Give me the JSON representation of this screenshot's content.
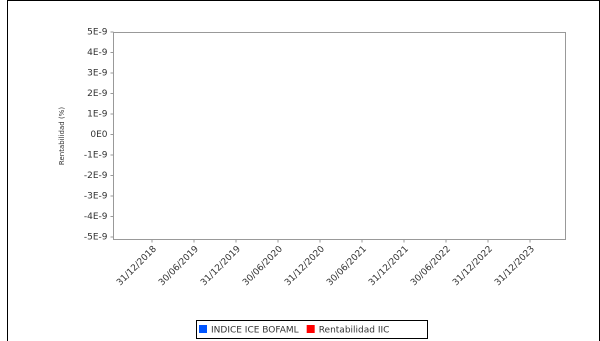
{
  "chart_data": {
    "type": "line",
    "y_label": "Rentabilidad (%)",
    "categories": [
      "31/12/2018",
      "30/06/2019",
      "31/12/2019",
      "30/06/2020",
      "31/12/2020",
      "30/06/2021",
      "31/12/2021",
      "30/06/2022",
      "31/12/2022",
      "31/12/2023"
    ],
    "series": [
      {
        "name": "INDICE ICE BOFAML",
        "color": "#0055ff",
        "values": [
          null,
          null,
          null,
          null,
          null,
          null,
          null,
          null,
          null,
          null
        ]
      },
      {
        "name": "Rentabilidad IIC",
        "color": "#ff0000",
        "values": [
          null,
          null,
          null,
          null,
          null,
          null,
          null,
          null,
          null,
          null
        ]
      }
    ],
    "ylim": [
      -5e-09,
      5e-09
    ],
    "yticks": [
      {
        "value": 5e-09,
        "label": "5E-9"
      },
      {
        "value": 4e-09,
        "label": "4E-9"
      },
      {
        "value": 3e-09,
        "label": "3E-9"
      },
      {
        "value": 2e-09,
        "label": "2E-9"
      },
      {
        "value": 1e-09,
        "label": "1E-9"
      },
      {
        "value": 0,
        "label": "0E0"
      },
      {
        "value": -1e-09,
        "label": "-1E-9"
      },
      {
        "value": -2e-09,
        "label": "-2E-9"
      },
      {
        "value": -3e-09,
        "label": "-3E-9"
      },
      {
        "value": -4e-09,
        "label": "-4E-9"
      },
      {
        "value": -5e-09,
        "label": "-5E-9"
      }
    ],
    "grid": false
  }
}
